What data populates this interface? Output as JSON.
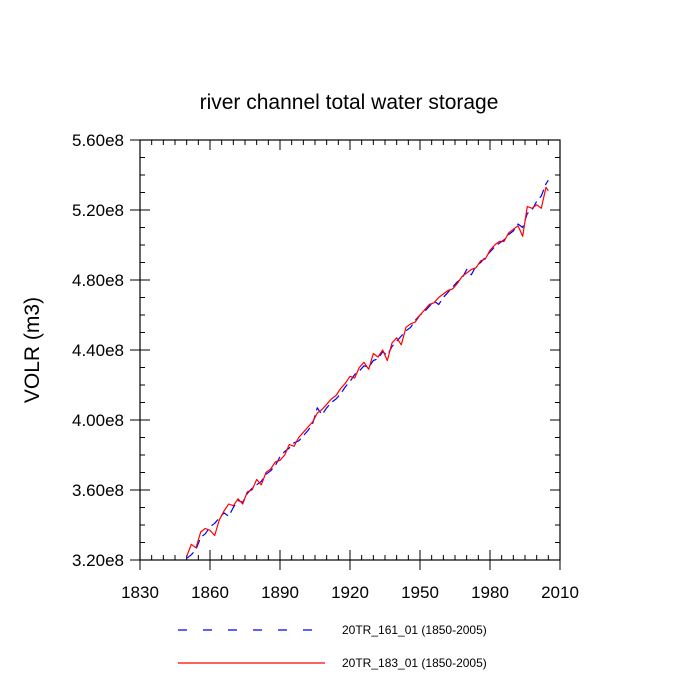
{
  "chart_data": {
    "type": "line",
    "title": "river channel total water storage",
    "ylabel": "VOLR  (m3)",
    "xlabel": "",
    "xlim": [
      1830,
      2010
    ],
    "ylim": [
      320000000.0,
      560000000.0
    ],
    "x_ticks": [
      1830,
      1860,
      1890,
      1920,
      1950,
      1980,
      2010
    ],
    "x_tick_labels": [
      "1830",
      "1860",
      "1890",
      "1920",
      "1950",
      "1980",
      "2010"
    ],
    "y_ticks": [
      320000000.0,
      360000000.0,
      400000000.0,
      440000000.0,
      480000000.0,
      520000000.0,
      560000000.0
    ],
    "y_tick_labels": [
      "3.20e8",
      "3.60e8",
      "4.00e8",
      "4.40e8",
      "4.80e8",
      "5.20e8",
      "5.60e8"
    ],
    "grid": false,
    "legend_position": "bottom",
    "series": [
      {
        "name": "20TR_161_01 (1850-2005)",
        "color": "#0000ff",
        "dash": "dashed",
        "x": [
          1850,
          1852,
          1854,
          1856,
          1858,
          1860,
          1862,
          1864,
          1866,
          1868,
          1870,
          1872,
          1874,
          1876,
          1878,
          1880,
          1882,
          1884,
          1886,
          1888,
          1890,
          1892,
          1894,
          1896,
          1898,
          1900,
          1902,
          1904,
          1906,
          1908,
          1910,
          1912,
          1914,
          1916,
          1918,
          1920,
          1922,
          1924,
          1926,
          1928,
          1930,
          1932,
          1934,
          1936,
          1938,
          1940,
          1942,
          1944,
          1946,
          1948,
          1950,
          1952,
          1954,
          1956,
          1958,
          1960,
          1962,
          1964,
          1966,
          1968,
          1970,
          1972,
          1974,
          1976,
          1978,
          1980,
          1982,
          1984,
          1986,
          1988,
          1990,
          1992,
          1994,
          1996,
          1998,
          2000,
          2002,
          2004,
          2005
        ],
        "y": [
          321000000.0,
          323000000.0,
          326000000.0,
          333000000.0,
          335000000.0,
          339000000.0,
          341000000.0,
          344000000.0,
          347000000.0,
          345000000.0,
          350000000.0,
          354000000.0,
          353000000.0,
          358000000.0,
          361000000.0,
          363000000.0,
          365000000.0,
          369000000.0,
          371000000.0,
          374000000.0,
          379000000.0,
          382000000.0,
          384000000.0,
          387000000.0,
          388000000.0,
          391000000.0,
          394000000.0,
          398000000.0,
          407000000.0,
          403000000.0,
          407000000.0,
          410000000.0,
          412000000.0,
          415000000.0,
          419000000.0,
          422000000.0,
          426000000.0,
          428000000.0,
          431000000.0,
          430000000.0,
          434000000.0,
          435000000.0,
          439000000.0,
          437000000.0,
          442000000.0,
          445000000.0,
          448000000.0,
          451000000.0,
          453000000.0,
          457000000.0,
          460000000.0,
          462000000.0,
          465000000.0,
          468000000.0,
          466000000.0,
          470000000.0,
          473000000.0,
          476000000.0,
          479000000.0,
          481000000.0,
          486000000.0,
          483000000.0,
          488000000.0,
          490000000.0,
          493000000.0,
          496000000.0,
          499000000.0,
          501000000.0,
          503000000.0,
          506000000.0,
          508000000.0,
          512000000.0,
          510000000.0,
          518000000.0,
          520000000.0,
          525000000.0,
          528000000.0,
          535000000.0,
          537000000.0
        ]
      },
      {
        "name": "20TR_183_01 (1850-2005)",
        "color": "#ff0000",
        "dash": "solid",
        "x": [
          1850,
          1852,
          1854,
          1856,
          1858,
          1860,
          1862,
          1864,
          1866,
          1868,
          1870,
          1872,
          1874,
          1876,
          1878,
          1880,
          1882,
          1884,
          1886,
          1888,
          1890,
          1892,
          1894,
          1896,
          1898,
          1900,
          1902,
          1904,
          1906,
          1908,
          1910,
          1912,
          1914,
          1916,
          1918,
          1920,
          1922,
          1924,
          1926,
          1928,
          1930,
          1932,
          1934,
          1936,
          1938,
          1940,
          1942,
          1944,
          1946,
          1948,
          1950,
          1952,
          1954,
          1956,
          1958,
          1960,
          1962,
          1964,
          1966,
          1968,
          1970,
          1972,
          1974,
          1976,
          1978,
          1980,
          1982,
          1984,
          1986,
          1988,
          1990,
          1992,
          1994,
          1996,
          1998,
          2000,
          2002,
          2004,
          2005
        ],
        "y": [
          322000000.0,
          329000000.0,
          327000000.0,
          336000000.0,
          338000000.0,
          337000000.0,
          334000000.0,
          343000000.0,
          348000000.0,
          352000000.0,
          351000000.0,
          355000000.0,
          352000000.0,
          359000000.0,
          360000000.0,
          366000000.0,
          363000000.0,
          370000000.0,
          372000000.0,
          376000000.0,
          377000000.0,
          380000000.0,
          386000000.0,
          385000000.0,
          390000000.0,
          393000000.0,
          396000000.0,
          399000000.0,
          404000000.0,
          406000000.0,
          409000000.0,
          412000000.0,
          414000000.0,
          418000000.0,
          421000000.0,
          425000000.0,
          424000000.0,
          430000000.0,
          433000000.0,
          429000000.0,
          438000000.0,
          436000000.0,
          440000000.0,
          434000000.0,
          444000000.0,
          447000000.0,
          443000000.0,
          453000000.0,
          455000000.0,
          456000000.0,
          460000000.0,
          463000000.0,
          466000000.0,
          467000000.0,
          470000000.0,
          472000000.0,
          474000000.0,
          475000000.0,
          478000000.0,
          482000000.0,
          484000000.0,
          486000000.0,
          487000000.0,
          491000000.0,
          492000000.0,
          497000000.0,
          500000000.0,
          502000000.0,
          502000000.0,
          507000000.0,
          509000000.0,
          511000000.0,
          505000000.0,
          522000000.0,
          521000000.0,
          523000000.0,
          521000000.0,
          533000000.0,
          531000000.0
        ]
      }
    ]
  }
}
